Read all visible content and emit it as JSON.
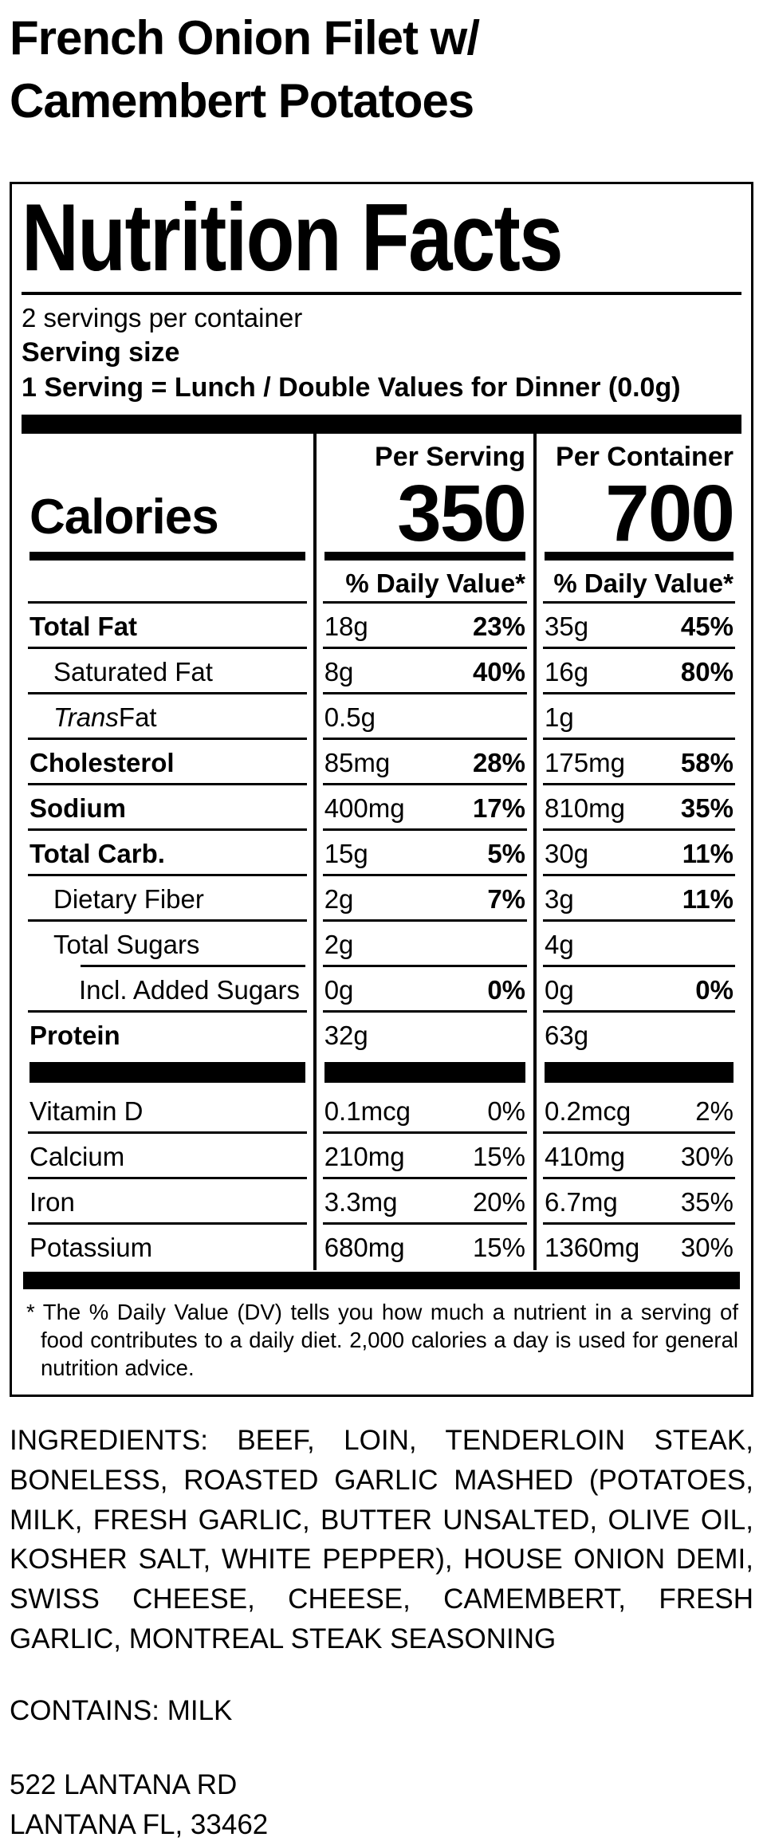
{
  "product": {
    "title": "French Onion Filet w/ Camembert Potatoes"
  },
  "panel": {
    "title": "Nutrition Facts",
    "servings_per_container": "2 servings per container",
    "serving_size_label": "Serving size",
    "serving_size_value": "1 Serving = Lunch / Double Values for Dinner (0.0g)",
    "calories": {
      "label": "Calories",
      "per_serving_header": "Per Serving",
      "per_serving_value": "350",
      "per_container_header": "Per Container",
      "per_container_value": "700"
    },
    "dv_header": "% Daily Value*",
    "rows": [
      {
        "label": "Total Fat",
        "serving_amount": "18g",
        "serving_dv": "23%",
        "container_amount": "35g",
        "container_dv": "45%"
      },
      {
        "label": "Saturated Fat",
        "serving_amount": "8g",
        "serving_dv": "40%",
        "container_amount": "16g",
        "container_dv": "80%"
      },
      {
        "label_italic": "Trans",
        "label_rest": " Fat",
        "serving_amount": "0.5g",
        "serving_dv": "",
        "container_amount": "1g",
        "container_dv": ""
      },
      {
        "label": "Cholesterol",
        "serving_amount": "85mg",
        "serving_dv": "28%",
        "container_amount": "175mg",
        "container_dv": "58%"
      },
      {
        "label": "Sodium",
        "serving_amount": "400mg",
        "serving_dv": "17%",
        "container_amount": "810mg",
        "container_dv": "35%"
      },
      {
        "label": "Total Carb.",
        "serving_amount": "15g",
        "serving_dv": "5%",
        "container_amount": "30g",
        "container_dv": "11%"
      },
      {
        "label": "Dietary Fiber",
        "serving_amount": "2g",
        "serving_dv": "7%",
        "container_amount": "3g",
        "container_dv": "11%"
      },
      {
        "label": "Total Sugars",
        "serving_amount": "2g",
        "serving_dv": "",
        "container_amount": "4g",
        "container_dv": ""
      },
      {
        "label": "Incl. Added Sugars",
        "serving_amount": "0g",
        "serving_dv": "0%",
        "container_amount": "0g",
        "container_dv": "0%"
      },
      {
        "label": "Protein",
        "serving_amount": "32g",
        "serving_dv": "",
        "container_amount": "63g",
        "container_dv": ""
      }
    ],
    "vitamin_rows": [
      {
        "label": "Vitamin D",
        "serving_amount": "0.1mcg",
        "serving_dv": "0%",
        "container_amount": "0.2mcg",
        "container_dv": "2%"
      },
      {
        "label": "Calcium",
        "serving_amount": "210mg",
        "serving_dv": "15%",
        "container_amount": "410mg",
        "container_dv": "30%"
      },
      {
        "label": "Iron",
        "serving_amount": "3.3mg",
        "serving_dv": "20%",
        "container_amount": "6.7mg",
        "container_dv": "35%"
      },
      {
        "label": "Potassium",
        "serving_amount": "680mg",
        "serving_dv": "15%",
        "container_amount": "1360mg",
        "container_dv": "30%"
      }
    ],
    "footnote": "* The % Daily Value (DV) tells you how much a nutrient in a serving of food contributes to a daily diet. 2,000 calories a day is used for general nutrition advice."
  },
  "ingredients": "INGREDIENTS: BEEF, LOIN, TENDERLOIN STEAK, BONELESS, ROASTED GARLIC MASHED (POTATOES, MILK, FRESH GARLIC, BUTTER UNSALTED, OLIVE OIL, KOSHER SALT, WHITE PEPPER), HOUSE ONION DEMI, SWISS CHEESE, CHEESE, CAMEMBERT, FRESH GARLIC, MONTREAL STEAK SEASONING",
  "contains": "CONTAINS: MILK",
  "address": {
    "line1": "522 LANTANA RD",
    "line2": "LANTANA FL, 33462"
  },
  "colors": {
    "ink": "#000000",
    "paper": "#ffffff"
  }
}
